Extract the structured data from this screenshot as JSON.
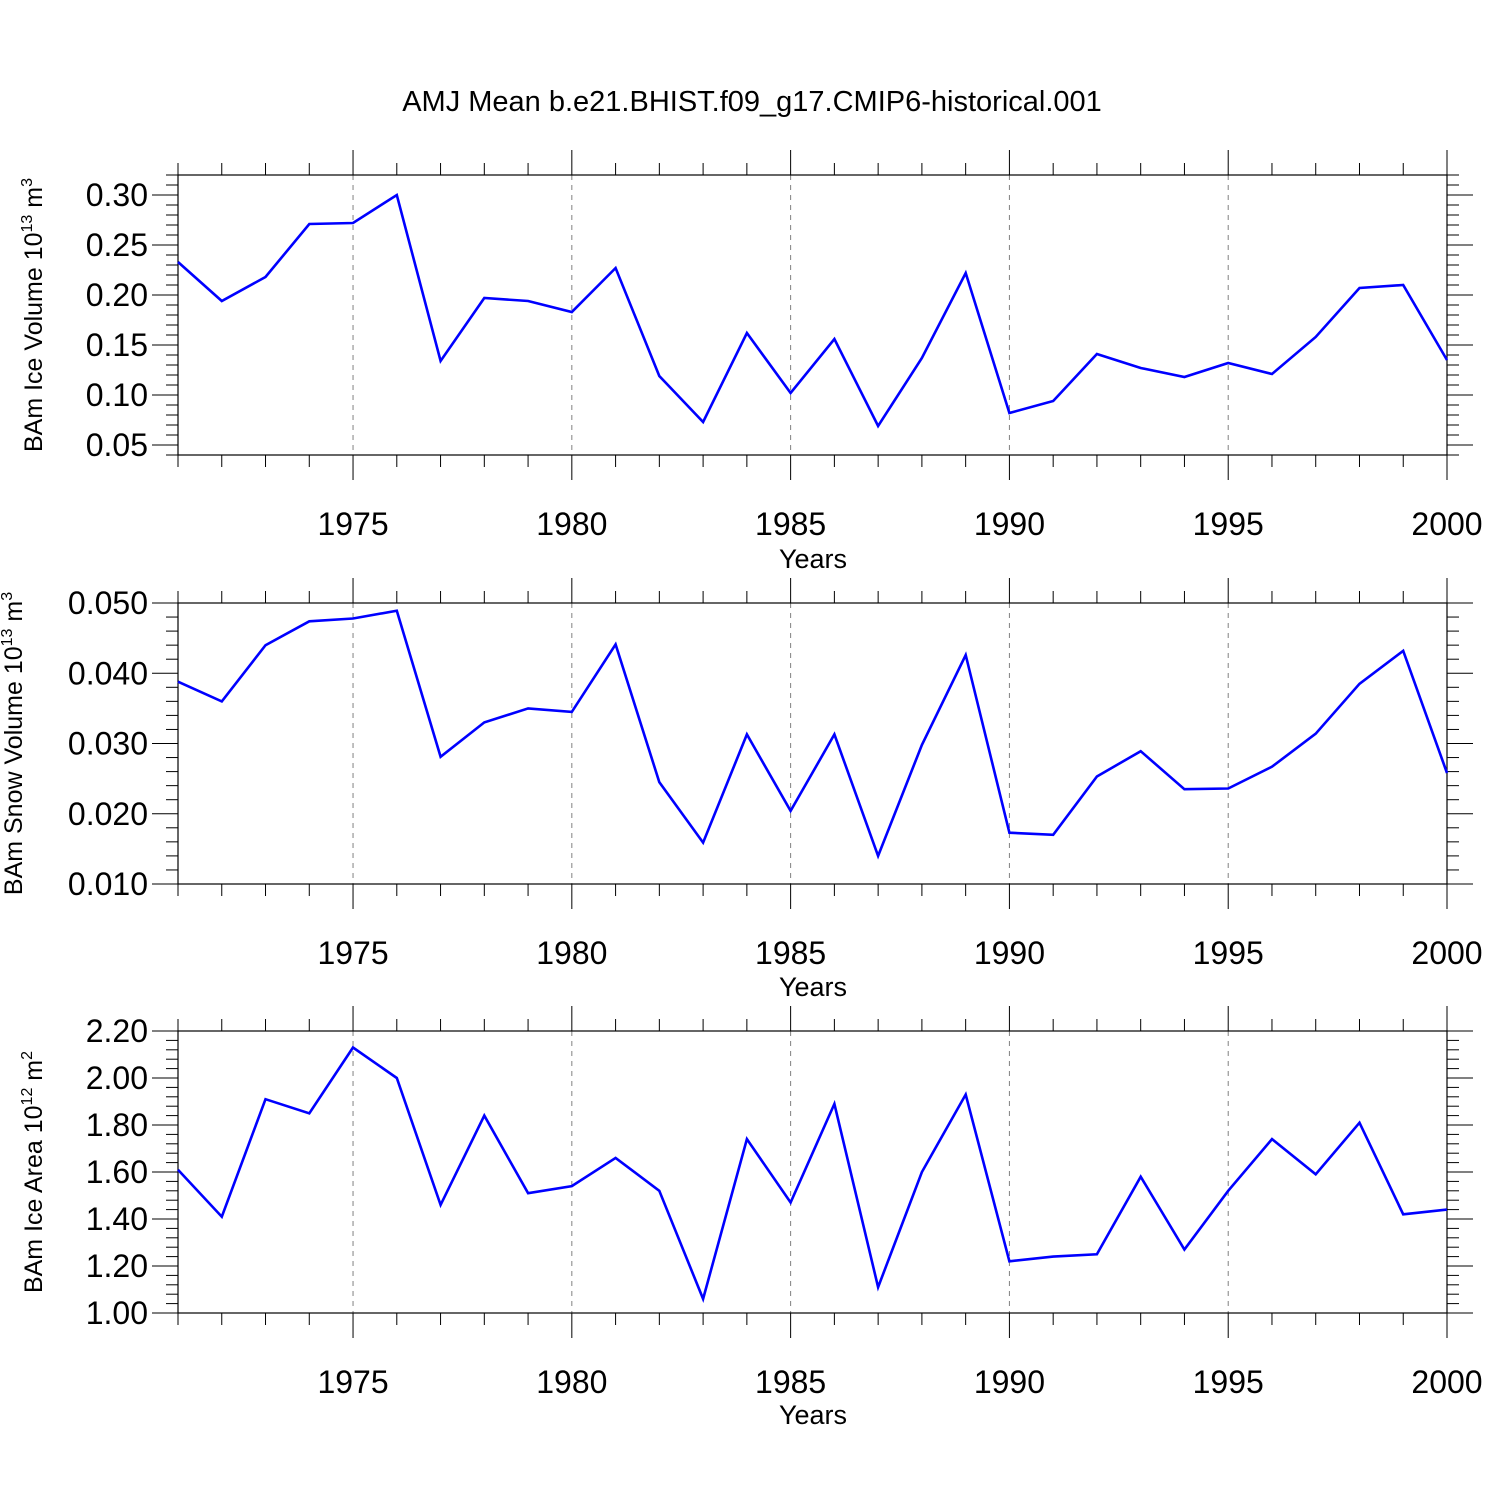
{
  "title": "AMJ Mean b.e21.BHIST.f09_g17.CMIP6-historical.001",
  "colors": {
    "line": "#0000ff",
    "axis": "#000000",
    "grid": "#808080"
  },
  "chart_data": [
    {
      "type": "line",
      "ylabel": {
        "main": "BAm Ice Volume 10",
        "sup": "13",
        "unit": " m",
        "unit_sup": "3"
      },
      "xlabel": "Years",
      "xlim": [
        1971,
        2000
      ],
      "ylim": [
        0.04,
        0.32
      ],
      "yticks": [
        0.05,
        0.1,
        0.15,
        0.2,
        0.25,
        0.3
      ],
      "ytick_labels": [
        "0.05",
        "0.10",
        "0.15",
        "0.20",
        "0.25",
        "0.30"
      ],
      "yminor": 0.01,
      "xticks": [
        1975,
        1980,
        1985,
        1990,
        1995,
        2000
      ],
      "xtick_labels": [
        "1975",
        "1980",
        "1985",
        "1990",
        "1995",
        "2000"
      ],
      "grid": "vertical dashed at major x ticks",
      "series": [
        {
          "x": [
            1971,
            1972,
            1973,
            1974,
            1975,
            1976,
            1977,
            1978,
            1979,
            1980,
            1981,
            1982,
            1983,
            1984,
            1985,
            1986,
            1987,
            1988,
            1989,
            1990,
            1991,
            1992,
            1993,
            1994,
            1995,
            1996,
            1997,
            1998,
            1999,
            2000
          ],
          "values": [
            0.233,
            0.194,
            0.218,
            0.271,
            0.272,
            0.3,
            0.134,
            0.197,
            0.194,
            0.183,
            0.227,
            0.119,
            0.073,
            0.162,
            0.102,
            0.156,
            0.069,
            0.137,
            0.222,
            0.082,
            0.094,
            0.141,
            0.127,
            0.118,
            0.132,
            0.121,
            0.158,
            0.207,
            0.21,
            0.135
          ]
        }
      ]
    },
    {
      "type": "line",
      "ylabel": {
        "main": "BAm Snow Volume 10",
        "sup": "13",
        "unit": " m",
        "unit_sup": "3"
      },
      "xlabel": "Years",
      "xlim": [
        1971,
        2000
      ],
      "ylim": [
        0.01,
        0.05
      ],
      "yticks": [
        0.01,
        0.02,
        0.03,
        0.04,
        0.05
      ],
      "ytick_labels": [
        "0.010",
        "0.020",
        "0.030",
        "0.040",
        "0.050"
      ],
      "yminor": 0.002,
      "xticks": [
        1975,
        1980,
        1985,
        1990,
        1995,
        2000
      ],
      "xtick_labels": [
        "1975",
        "1980",
        "1985",
        "1990",
        "1995",
        "2000"
      ],
      "grid": "vertical dashed at major x ticks",
      "series": [
        {
          "x": [
            1971,
            1972,
            1973,
            1974,
            1975,
            1976,
            1977,
            1978,
            1979,
            1980,
            1981,
            1982,
            1983,
            1984,
            1985,
            1986,
            1987,
            1988,
            1989,
            1990,
            1991,
            1992,
            1993,
            1994,
            1995,
            1996,
            1997,
            1998,
            1999,
            2000
          ],
          "values": [
            0.0388,
            0.036,
            0.044,
            0.0474,
            0.0478,
            0.0489,
            0.0281,
            0.033,
            0.035,
            0.0345,
            0.0441,
            0.0245,
            0.0159,
            0.0313,
            0.0204,
            0.0313,
            0.014,
            0.0298,
            0.0426,
            0.0173,
            0.017,
            0.0253,
            0.0289,
            0.0235,
            0.0236,
            0.0267,
            0.0314,
            0.0385,
            0.0432,
            0.0258
          ]
        }
      ]
    },
    {
      "type": "line",
      "ylabel": {
        "main": "BAm Ice Area 10",
        "sup": "12",
        "unit": " m",
        "unit_sup": "2"
      },
      "xlabel": "Years",
      "xlim": [
        1971,
        2000
      ],
      "ylim": [
        1.0,
        2.2
      ],
      "yticks": [
        1.0,
        1.2,
        1.4,
        1.6,
        1.8,
        2.0,
        2.2
      ],
      "ytick_labels": [
        "1.00",
        "1.20",
        "1.40",
        "1.60",
        "1.80",
        "2.00",
        "2.20"
      ],
      "yminor": 0.04,
      "xticks": [
        1975,
        1980,
        1985,
        1990,
        1995,
        2000
      ],
      "xtick_labels": [
        "1975",
        "1980",
        "1985",
        "1990",
        "1995",
        "2000"
      ],
      "grid": "vertical dashed at major x ticks",
      "series": [
        {
          "x": [
            1971,
            1972,
            1973,
            1974,
            1975,
            1976,
            1977,
            1978,
            1979,
            1980,
            1981,
            1982,
            1983,
            1984,
            1985,
            1986,
            1987,
            1988,
            1989,
            1990,
            1991,
            1992,
            1993,
            1994,
            1995,
            1996,
            1997,
            1998,
            1999,
            2000
          ],
          "values": [
            1.61,
            1.41,
            1.91,
            1.85,
            2.13,
            2.0,
            1.46,
            1.84,
            1.51,
            1.54,
            1.66,
            1.52,
            1.06,
            1.74,
            1.47,
            1.89,
            1.11,
            1.6,
            1.93,
            1.22,
            1.24,
            1.25,
            1.58,
            1.27,
            1.52,
            1.74,
            1.59,
            1.81,
            1.42,
            1.44
          ]
        }
      ]
    }
  ]
}
